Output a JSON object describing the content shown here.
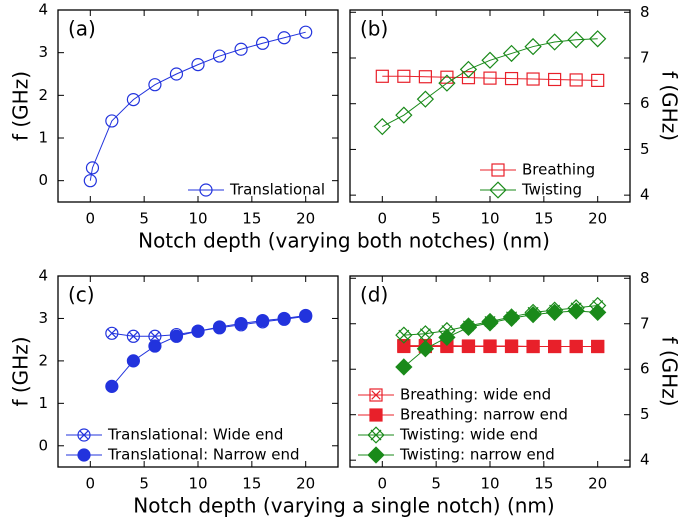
{
  "chart_data": [
    {
      "type": "line",
      "panel_label": "(a)",
      "y_label": "f (GHz)",
      "x_label": "Notch depth (varying both notches) (nm)",
      "xlim": [
        -3,
        23
      ],
      "xticks": [
        0,
        5,
        10,
        15,
        20
      ],
      "ylim": [
        -0.5,
        4
      ],
      "yticks": [
        0,
        1,
        2,
        3,
        4
      ],
      "legend": "lower right",
      "x": [
        0,
        0.2,
        2,
        4,
        6,
        8,
        10,
        12,
        14,
        16,
        18,
        20
      ],
      "series": [
        {
          "name": "Translational",
          "color": "#2233dd",
          "marker": "circle-open",
          "values": [
            0,
            0.3,
            1.4,
            1.9,
            2.25,
            2.5,
            2.72,
            2.92,
            3.08,
            3.22,
            3.35,
            3.48
          ]
        }
      ]
    },
    {
      "type": "line",
      "panel_label": "(b)",
      "y2_label": "f (GHz)",
      "xlim": [
        -3,
        23
      ],
      "xticks": [
        0,
        5,
        10,
        15,
        20
      ],
      "y2lim": [
        3.85,
        8.05
      ],
      "y2ticks": [
        4,
        5,
        6,
        7,
        8
      ],
      "legend": "lower right",
      "x": [
        0,
        2,
        4,
        6,
        8,
        10,
        12,
        14,
        16,
        18,
        20
      ],
      "series": [
        {
          "name": "Breathing",
          "color": "#e8202a",
          "marker": "square-open",
          "axis": "y2",
          "values": [
            6.6,
            6.6,
            6.59,
            6.58,
            6.57,
            6.56,
            6.55,
            6.54,
            6.53,
            6.52,
            6.51
          ]
        },
        {
          "name": "Twisting",
          "color": "#1a8a1a",
          "marker": "diamond-open",
          "axis": "y2",
          "values": [
            5.5,
            5.75,
            6.1,
            6.45,
            6.75,
            6.95,
            7.1,
            7.25,
            7.35,
            7.4,
            7.42
          ]
        }
      ]
    },
    {
      "type": "line",
      "panel_label": "(c)",
      "y_label": "f (GHz)",
      "x_label": "Notch depth (varying a single notch) (nm)",
      "xlim": [
        -3,
        23
      ],
      "xticks": [
        0,
        5,
        10,
        15,
        20
      ],
      "ylim": [
        -0.5,
        4
      ],
      "yticks": [
        0,
        1,
        2,
        3,
        4
      ],
      "legend": "lower left",
      "x": [
        2,
        4,
        6,
        8,
        10,
        12,
        14,
        16,
        18,
        20
      ],
      "series": [
        {
          "name": "Translational: Wide end",
          "color": "#2233dd",
          "marker": "circle-cross",
          "values": [
            2.65,
            2.58,
            2.58,
            2.62,
            2.7,
            2.78,
            2.85,
            2.92,
            2.98,
            3.05
          ]
        },
        {
          "name": "Translational: Narrow end",
          "color": "#2233dd",
          "marker": "circle-filled",
          "values": [
            1.4,
            2.0,
            2.35,
            2.58,
            2.7,
            2.8,
            2.88,
            2.95,
            3.0,
            3.07
          ]
        }
      ]
    },
    {
      "type": "line",
      "panel_label": "(d)",
      "y2_label": "f (GHz)",
      "xlim": [
        -3,
        23
      ],
      "xticks": [
        0,
        5,
        10,
        15,
        20
      ],
      "y2lim": [
        3.85,
        8.05
      ],
      "y2ticks": [
        4,
        5,
        6,
        7,
        8
      ],
      "legend": "lower left",
      "x": [
        2,
        4,
        6,
        8,
        10,
        12,
        14,
        16,
        18,
        20
      ],
      "series": [
        {
          "name": "Breathing: wide end",
          "color": "#e8202a",
          "marker": "square-cross",
          "axis": "y2",
          "values": [
            6.52,
            6.52,
            6.52,
            6.51,
            6.51,
            6.51,
            6.5,
            6.5,
            6.5,
            6.5
          ]
        },
        {
          "name": "Breathing: narrow end",
          "color": "#e8202a",
          "marker": "square-filled",
          "axis": "y2",
          "values": [
            6.5,
            6.5,
            6.5,
            6.5,
            6.5,
            6.5,
            6.5,
            6.5,
            6.5,
            6.5
          ]
        },
        {
          "name": "Twisting: wide end",
          "color": "#1a8a1a",
          "marker": "diamond-cross",
          "axis": "y2",
          "values": [
            6.75,
            6.78,
            6.85,
            6.95,
            7.05,
            7.15,
            7.25,
            7.3,
            7.35,
            7.4
          ]
        },
        {
          "name": "Twisting: narrow end",
          "color": "#1a8a1a",
          "marker": "diamond-filled",
          "axis": "y2",
          "values": [
            6.05,
            6.45,
            6.7,
            6.92,
            7.02,
            7.12,
            7.2,
            7.25,
            7.28,
            7.25
          ]
        }
      ]
    }
  ]
}
